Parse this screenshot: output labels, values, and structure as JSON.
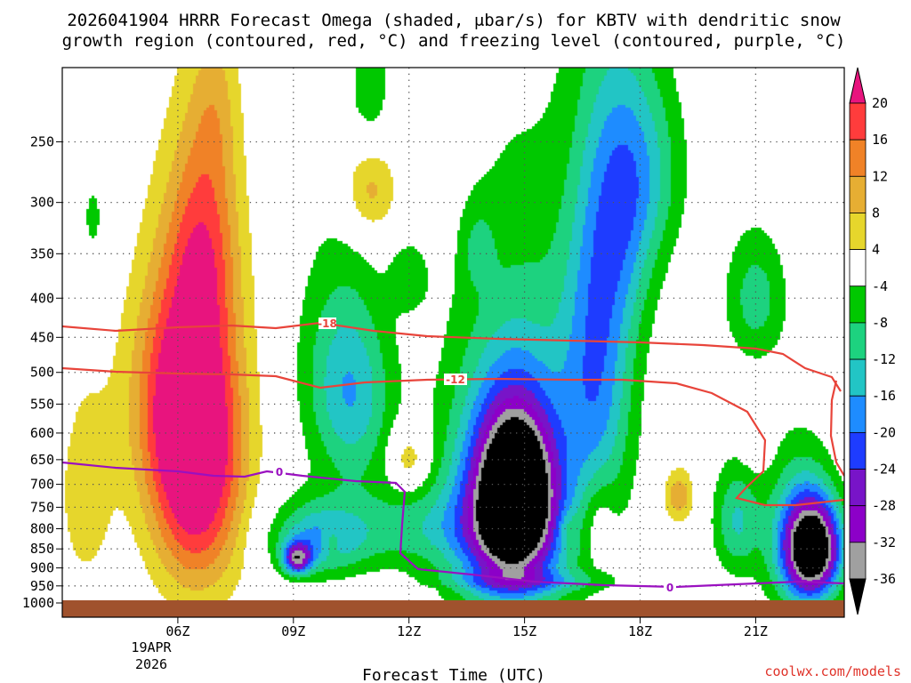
{
  "chart_data": {
    "type": "heatmap",
    "title_line1": "2026041904 HRRR Forecast Omega (shaded, μbar/s) for KBTV with dendritic snow",
    "title_line2": "growth region (contoured, red, °C) and freezing level (contoured, purple, °C)",
    "xlabel": "Forecast Time (UTC)",
    "credit": "coolwx.com/models",
    "x_range_hours": [
      3,
      23.3
    ],
    "x_ticks": [
      {
        "hour": 6,
        "label": "06Z"
      },
      {
        "hour": 9,
        "label": "09Z"
      },
      {
        "hour": 12,
        "label": "12Z"
      },
      {
        "hour": 15,
        "label": "15Z"
      },
      {
        "hour": 18,
        "label": "18Z"
      },
      {
        "hour": 21,
        "label": "21Z"
      }
    ],
    "date_label": [
      "19APR",
      "2026"
    ],
    "y_ticks_hPa": [
      {
        "p": 250,
        "label": "250"
      },
      {
        "p": 300,
        "label": "300"
      },
      {
        "p": 350,
        "label": "350"
      },
      {
        "p": 400,
        "label": "400"
      },
      {
        "p": 450,
        "label": "450"
      },
      {
        "p": 500,
        "label": "500"
      },
      {
        "p": 550,
        "label": "550"
      },
      {
        "p": 600,
        "label": "600"
      },
      {
        "p": 650,
        "label": "650"
      },
      {
        "p": 700,
        "label": "700"
      },
      {
        "p": 750,
        "label": "750"
      },
      {
        "p": 800,
        "label": "800"
      },
      {
        "p": 850,
        "label": "850"
      },
      {
        "p": 900,
        "label": "900"
      },
      {
        "p": 950,
        "label": "950"
      },
      {
        "p": 1000,
        "label": "1000"
      }
    ],
    "colorbar": {
      "labels": [
        "20",
        "16",
        "12",
        "8",
        "4",
        "-4",
        "-8",
        "-12",
        "-16",
        "-20",
        "-24",
        "-28",
        "-32",
        "-36"
      ],
      "colors": [
        "#e8147e",
        "#ff3c3c",
        "#f08227",
        "#e6ae33",
        "#e6d62c",
        "#ffffff",
        "#00c800",
        "#1dd27f",
        "#22c5c5",
        "#1e8cff",
        "#1e3cff",
        "#7814c8",
        "#8c00c8",
        "#a0a0a0",
        "#000000"
      ]
    },
    "contour_labels": {
      "dgz_upper": "-18",
      "dgz_lower": "-12",
      "freezing": "0",
      "freezing_2": "0"
    },
    "legend": {
      "dgz_color": "#e8443a",
      "freezing_color": "#9a10c0",
      "ground_color": "#a0522d"
    },
    "omega_cells": [
      {
        "t": 6.2,
        "p": 530,
        "v": 22,
        "rt": 1.3,
        "rp": 200
      },
      {
        "t": 6.5,
        "p": 720,
        "v": 20,
        "rt": 1.2,
        "rp": 250
      },
      {
        "t": 6.7,
        "p": 330,
        "v": 12,
        "rt": 0.9,
        "rp": 120
      },
      {
        "t": 7.0,
        "p": 220,
        "v": 5,
        "rt": 0.6,
        "rp": 60
      },
      {
        "t": 11.0,
        "p": 290,
        "v": 10,
        "rt": 0.7,
        "rp": 40
      },
      {
        "t": 12.0,
        "p": 650,
        "v": 9,
        "rt": 0.5,
        "rp": 60
      },
      {
        "t": 13.1,
        "p": 210,
        "v": 4,
        "rt": 0.3,
        "rp": 30
      },
      {
        "t": 19.0,
        "p": 725,
        "v": 11,
        "rt": 0.4,
        "rp": 60
      },
      {
        "t": 16.1,
        "p": 800,
        "v": 5,
        "rt": 0.3,
        "rp": 50
      },
      {
        "t": 21.0,
        "p": 600,
        "v": 5,
        "rt": 0.4,
        "rp": 60
      },
      {
        "t": 19.1,
        "p": 930,
        "v": 4,
        "rt": 0.4,
        "rp": 20
      },
      {
        "t": 12.0,
        "p": 962,
        "v": 4,
        "rt": 0.6,
        "rp": 10
      },
      {
        "t": 3.6,
        "p": 720,
        "v": 6,
        "rt": 0.8,
        "rp": 250
      },
      {
        "t": 14.8,
        "p": 720,
        "v": -32,
        "rt": 0.9,
        "rp": 160
      },
      {
        "t": 14.5,
        "p": 760,
        "v": -22,
        "rt": 1.3,
        "rp": 230
      },
      {
        "t": 15.0,
        "p": 650,
        "v": -12,
        "rt": 2.0,
        "rp": 380
      },
      {
        "t": 16.9,
        "p": 470,
        "v": -16,
        "rt": 0.9,
        "rp": 250
      },
      {
        "t": 17.6,
        "p": 300,
        "v": -12,
        "rt": 0.9,
        "rp": 130
      },
      {
        "t": 18.3,
        "p": 270,
        "v": -8,
        "rt": 1.0,
        "rp": 80
      },
      {
        "t": 9.1,
        "p": 875,
        "v": -26,
        "rt": 0.35,
        "rp": 40
      },
      {
        "t": 9.6,
        "p": 830,
        "v": -14,
        "rt": 1.2,
        "rp": 90
      },
      {
        "t": 10.6,
        "p": 540,
        "v": -12,
        "rt": 1.0,
        "rp": 150
      },
      {
        "t": 12.0,
        "p": 800,
        "v": -9,
        "rt": 2.5,
        "rp": 100
      },
      {
        "t": 10.0,
        "p": 480,
        "v": -6,
        "rt": 1.1,
        "rp": 180
      },
      {
        "t": 11.0,
        "p": 210,
        "v": -7,
        "rt": 0.5,
        "rp": 40
      },
      {
        "t": 12.0,
        "p": 375,
        "v": -6,
        "rt": 0.5,
        "rp": 40
      },
      {
        "t": 13.8,
        "p": 345,
        "v": -6,
        "rt": 0.4,
        "rp": 40
      },
      {
        "t": 21.0,
        "p": 400,
        "v": -10,
        "rt": 0.8,
        "rp": 80
      },
      {
        "t": 20.5,
        "p": 780,
        "v": -12,
        "rt": 0.6,
        "rp": 130
      },
      {
        "t": 22.5,
        "p": 850,
        "v": -40,
        "rt": 0.7,
        "rp": 120
      },
      {
        "t": 22.1,
        "p": 820,
        "v": -14,
        "rt": 0.9,
        "rp": 200
      },
      {
        "t": 3.8,
        "p": 315,
        "v": -6,
        "rt": 0.3,
        "rp": 40
      },
      {
        "t": 15.0,
        "p": 937,
        "v": -8,
        "rt": 2.0,
        "rp": 30
      },
      {
        "t": 16.9,
        "p": 780,
        "v": 6,
        "rt": 0.45,
        "rp": 100
      },
      {
        "t": 10.0,
        "p": 830,
        "v": 6,
        "rt": 0.25,
        "rp": 40
      }
    ]
  }
}
